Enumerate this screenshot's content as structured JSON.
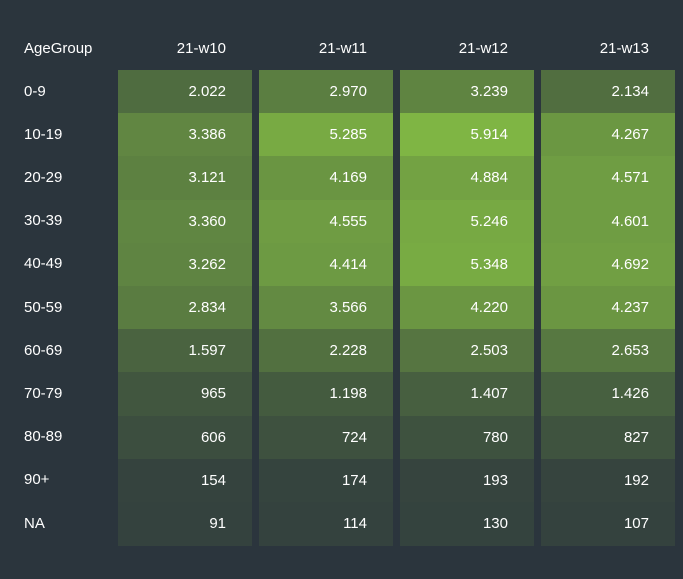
{
  "chart_data": {
    "type": "heatmap",
    "row_header": "AgeGroup",
    "columns": [
      "21-w10",
      "21-w11",
      "21-w12",
      "21-w13"
    ],
    "rows": [
      {
        "label": "0-9",
        "values": [
          "2.022",
          "2.970",
          "3.239",
          "2.134"
        ]
      },
      {
        "label": "10-19",
        "values": [
          "3.386",
          "5.285",
          "5.914",
          "4.267"
        ]
      },
      {
        "label": "20-29",
        "values": [
          "3.121",
          "4.169",
          "4.884",
          "4.571"
        ]
      },
      {
        "label": "30-39",
        "values": [
          "3.360",
          "4.555",
          "5.246",
          "4.601"
        ]
      },
      {
        "label": "40-49",
        "values": [
          "3.262",
          "4.414",
          "5.348",
          "4.692"
        ]
      },
      {
        "label": "50-59",
        "values": [
          "2.834",
          "3.566",
          "4.220",
          "4.237"
        ]
      },
      {
        "label": "60-69",
        "values": [
          "1.597",
          "2.228",
          "2.503",
          "2.653"
        ]
      },
      {
        "label": "70-79",
        "values": [
          "965",
          "1.198",
          "1.407",
          "1.426"
        ]
      },
      {
        "label": "80-89",
        "values": [
          "606",
          "724",
          "780",
          "827"
        ]
      },
      {
        "label": "90+",
        "values": [
          "154",
          "174",
          "193",
          "192"
        ]
      },
      {
        "label": "NA",
        "values": [
          "91",
          "114",
          "130",
          "107"
        ]
      }
    ],
    "color_scale": {
      "low": "#323f3e",
      "high": "#7fb544"
    },
    "background": "#2b353d",
    "text_color": "#ffffff"
  }
}
